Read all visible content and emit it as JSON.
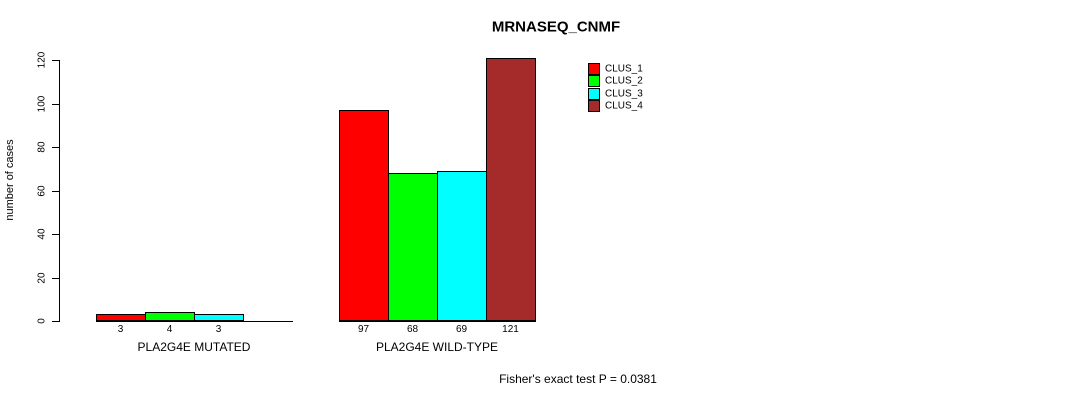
{
  "title": "MRNASEQ_CNMF",
  "footer_note": "Fisher's exact test P = 0.0381",
  "colors": {
    "clus_1": "#ff0000",
    "clus_2": "#00ff00",
    "clus_3": "#00ffff",
    "clus_4": "#a52a2a",
    "axis": "#000000",
    "background": "#ffffff"
  },
  "chart_data": {
    "type": "bar",
    "title": "MRNASEQ_CNMF",
    "xlabel": "",
    "ylabel": "number of cases",
    "categories": [
      "PLA2G4E MUTATED",
      "PLA2G4E WILD-TYPE"
    ],
    "series": [
      {
        "name": "CLUS_1",
        "color": "#ff0000",
        "values": [
          3,
          97
        ]
      },
      {
        "name": "CLUS_2",
        "color": "#00ff00",
        "values": [
          4,
          68
        ]
      },
      {
        "name": "CLUS_3",
        "color": "#00ffff",
        "values": [
          3,
          69
        ]
      },
      {
        "name": "CLUS_4",
        "color": "#a52a2a",
        "values": [
          0,
          121
        ]
      }
    ],
    "bar_value_labels": [
      [
        "3",
        "4",
        "3",
        ""
      ],
      [
        "97",
        "68",
        "69",
        "121"
      ]
    ],
    "yticks": [
      0,
      20,
      40,
      60,
      80,
      100,
      120
    ],
    "ylim": [
      0,
      130
    ],
    "grid": false,
    "legend_position": "top-right",
    "legend_items": [
      "CLUS_1",
      "CLUS_2",
      "CLUS_3",
      "CLUS_4"
    ],
    "annotation": "Fisher's exact test P = 0.0381"
  }
}
